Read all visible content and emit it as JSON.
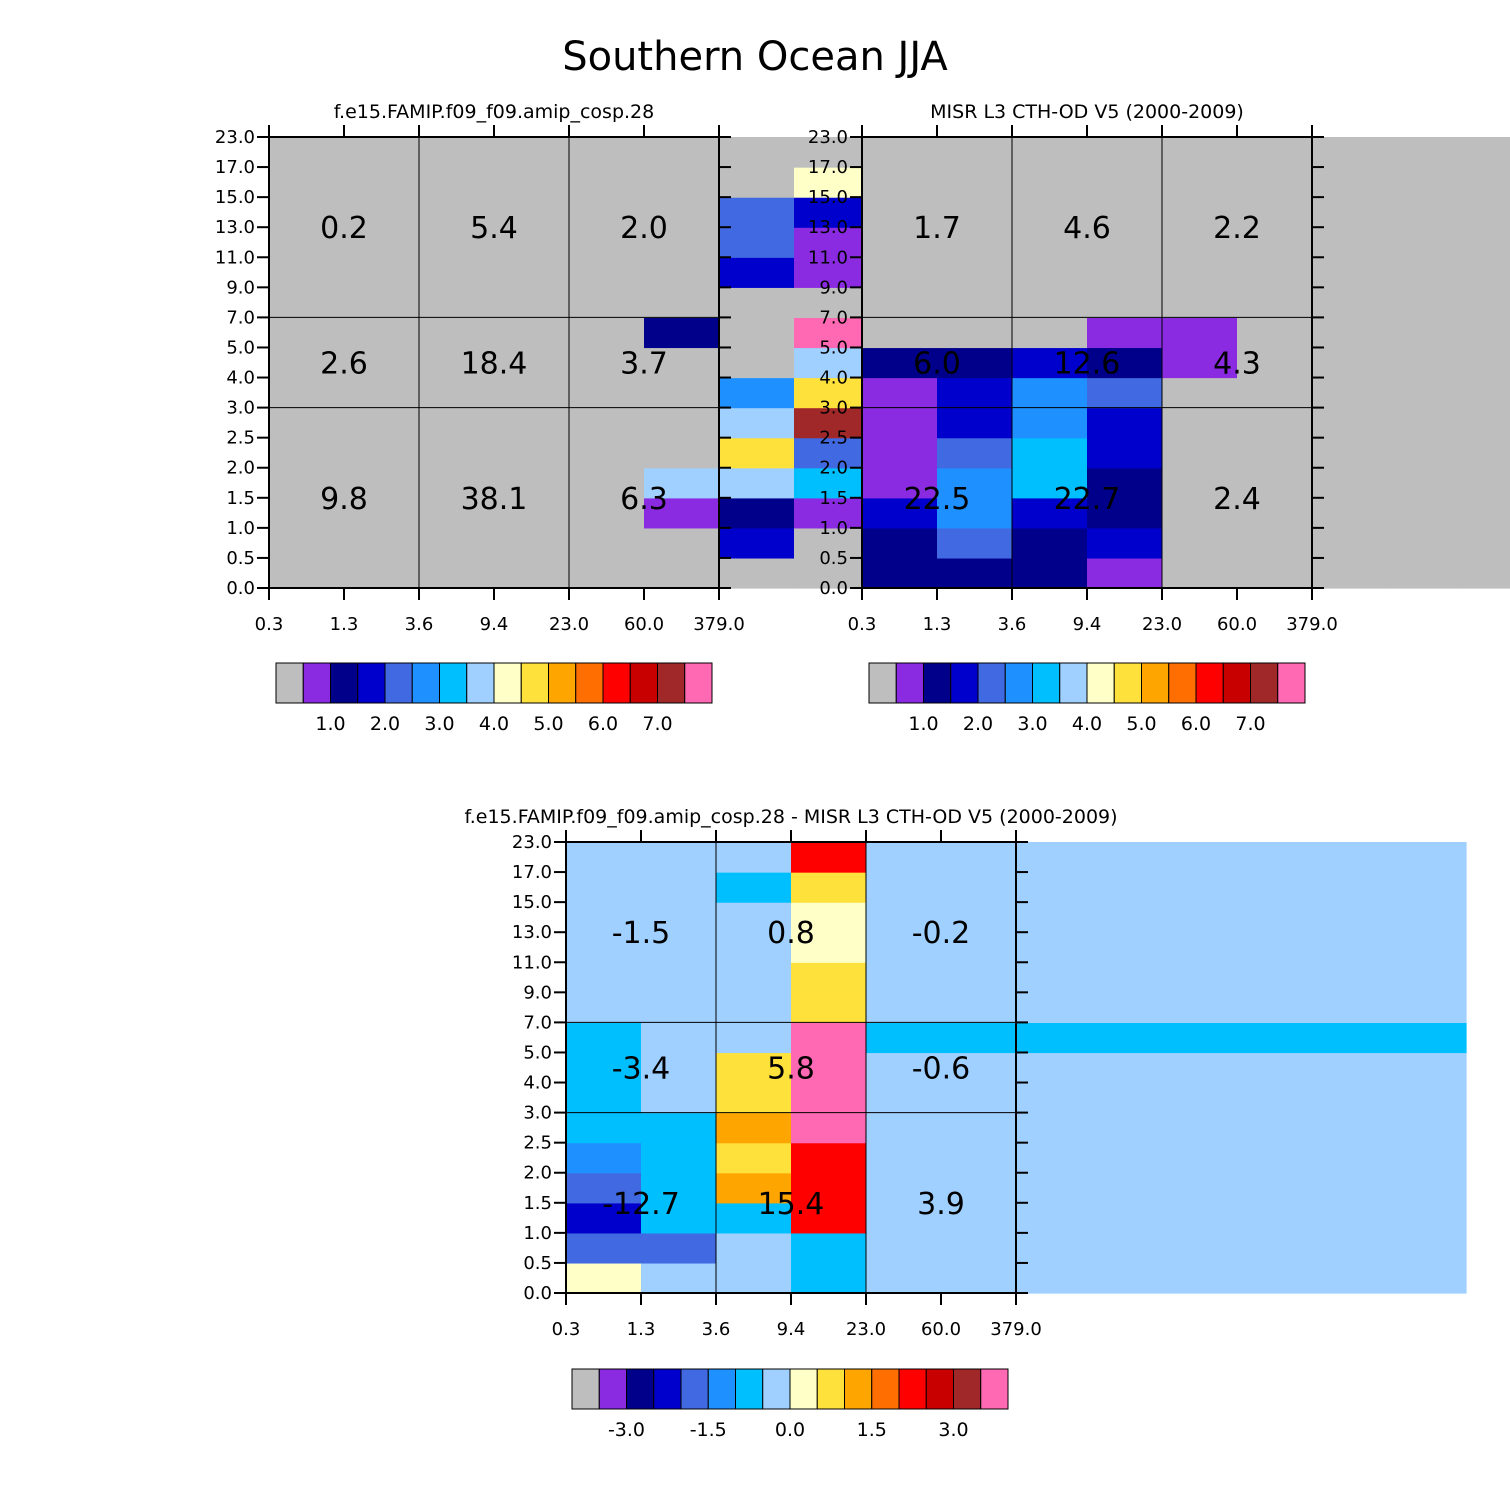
{
  "title": "Southern Ocean JJA",
  "palette": [
    "#bebebe",
    "#8a2be2",
    "#00008b",
    "#0000cd",
    "#4169e1",
    "#1e90ff",
    "#00bfff",
    "#a0d0ff",
    "#ffffc8",
    "#ffe13c",
    "#ffa500",
    "#ff6e00",
    "#ff0000",
    "#c80000",
    "#a02828",
    "#ff69b4"
  ],
  "chart_data": [
    {
      "type": "heatmap",
      "title": "f.e15.FAMIP.f09_f09.amip_cosp.28",
      "xticks": [
        "0.3",
        "1.3",
        "3.6",
        "9.4",
        "23.0",
        "60.0",
        "379.0"
      ],
      "yticks": [
        "0.0",
        "0.5",
        "1.0",
        "1.5",
        "2.0",
        "2.5",
        "3.0",
        "4.0",
        "5.0",
        "7.0",
        "9.0",
        "11.0",
        "13.0",
        "15.0",
        "17.0",
        "23.0"
      ],
      "colorbar_labels": [
        "1.0",
        "2.0",
        "3.0",
        "4.0",
        "5.0",
        "6.0",
        "7.0"
      ],
      "cells": [
        [
          0,
          0,
          0,
          0,
          0,
          0,
          0,
          0,
          0,
          0,
          0,
          0,
          0,
          0,
          0
        ],
        [
          0,
          0,
          0,
          0,
          0,
          0,
          0,
          0,
          0,
          0,
          0,
          0,
          0,
          0,
          0
        ],
        [
          0,
          0,
          0,
          0,
          0,
          0,
          0,
          0,
          0,
          0,
          0,
          0,
          0,
          0,
          0
        ],
        [
          0,
          0,
          0,
          0,
          0,
          0,
          0,
          0,
          0,
          0,
          0,
          0,
          0,
          0,
          0
        ],
        [
          0,
          0,
          0,
          0,
          0,
          0,
          0,
          0,
          0,
          0,
          0,
          0,
          0,
          0,
          0
        ],
        [
          0,
          0,
          1,
          7,
          0,
          0,
          0,
          0,
          2,
          0,
          0,
          0,
          0,
          0,
          0
        ],
        [
          0,
          3,
          2,
          7,
          9,
          7,
          5,
          0,
          0,
          0,
          3,
          4,
          4,
          0,
          0
        ],
        [
          0,
          0,
          1,
          6,
          4,
          14,
          9,
          7,
          15,
          0,
          1,
          1,
          3,
          8,
          0
        ],
        [
          0,
          0,
          4,
          3,
          1,
          4,
          4,
          1,
          4,
          0,
          0,
          0,
          0,
          0,
          0
        ],
        [
          0,
          0,
          0,
          0,
          0,
          0,
          0,
          0,
          0,
          0,
          0,
          0,
          0,
          0,
          0
        ],
        [
          0,
          0,
          0,
          0,
          0,
          0,
          0,
          0,
          0,
          0,
          0,
          0,
          0,
          0,
          0
        ],
        [
          0,
          0,
          0,
          0,
          0,
          0,
          0,
          0,
          0,
          0,
          0,
          0,
          0,
          0,
          0
        ]
      ],
      "region_labels": [
        [
          "0.2",
          "5.4",
          "2.0"
        ],
        [
          "2.6",
          "18.4",
          "3.7"
        ],
        [
          "9.8",
          "38.1",
          "6.3"
        ]
      ]
    },
    {
      "type": "heatmap",
      "title": "MISR L3 CTH-OD V5 (2000-2009)",
      "xticks": [
        "0.3",
        "1.3",
        "3.6",
        "9.4",
        "23.0",
        "60.0",
        "379.0"
      ],
      "yticks": [
        "0.0",
        "0.5",
        "1.0",
        "1.5",
        "2.0",
        "2.5",
        "3.0",
        "4.0",
        "5.0",
        "7.0",
        "9.0",
        "11.0",
        "13.0",
        "15.0",
        "17.0",
        "23.0"
      ],
      "colorbar_labels": [
        "1.0",
        "2.0",
        "3.0",
        "4.0",
        "5.0",
        "6.0",
        "7.0"
      ],
      "cells": [
        [
          2,
          2,
          3,
          1,
          1,
          1,
          1,
          2,
          0,
          0,
          0,
          0,
          0,
          0,
          0
        ],
        [
          2,
          4,
          5,
          5,
          4,
          3,
          3,
          2,
          0,
          0,
          0,
          0,
          0,
          0,
          0
        ],
        [
          2,
          2,
          3,
          6,
          6,
          5,
          5,
          3,
          0,
          0,
          0,
          0,
          0,
          0,
          0
        ],
        [
          1,
          3,
          2,
          2,
          3,
          3,
          4,
          2,
          1,
          0,
          0,
          0,
          0,
          0,
          0
        ],
        [
          0,
          0,
          0,
          0,
          0,
          0,
          0,
          1,
          1,
          0,
          0,
          0,
          0,
          0,
          0
        ],
        [
          0,
          0,
          0,
          0,
          0,
          0,
          0,
          0,
          0,
          0,
          0,
          0,
          0,
          0,
          0
        ],
        [
          0,
          0,
          0,
          0,
          0,
          0,
          0,
          0,
          0,
          0,
          0,
          0,
          0,
          0,
          0
        ],
        [
          0,
          0,
          0,
          0,
          0,
          0,
          0,
          0,
          0,
          0,
          0,
          0,
          0,
          0,
          0
        ],
        [
          0,
          0,
          0,
          0,
          0,
          0,
          0,
          0,
          0,
          0,
          0,
          0,
          0,
          0,
          0
        ],
        [
          0,
          0,
          0,
          0,
          0,
          0,
          0,
          0,
          0,
          0,
          0,
          0,
          0,
          0,
          0
        ],
        [
          0,
          0,
          0,
          0,
          0,
          0,
          0,
          0,
          0,
          0,
          0,
          0,
          0,
          0,
          0
        ],
        [
          0,
          0,
          0,
          0,
          0,
          0,
          0,
          0,
          0,
          0,
          0,
          0,
          0,
          0,
          0
        ]
      ],
      "region_labels": [
        [
          "1.7",
          "4.6",
          "2.2"
        ],
        [
          "6.0",
          "12.6",
          "4.3"
        ],
        [
          "22.5",
          "22.7",
          "2.4"
        ]
      ]
    },
    {
      "type": "heatmap",
      "title": "f.e15.FAMIP.f09_f09.amip_cosp.28 - MISR L3 CTH-OD V5 (2000-2009)",
      "xticks": [
        "0.3",
        "1.3",
        "3.6",
        "9.4",
        "23.0",
        "60.0",
        "379.0"
      ],
      "yticks": [
        "0.0",
        "0.5",
        "1.0",
        "1.5",
        "2.0",
        "2.5",
        "3.0",
        "4.0",
        "5.0",
        "7.0",
        "9.0",
        "11.0",
        "13.0",
        "15.0",
        "17.0",
        "23.0"
      ],
      "colorbar_labels": [
        "-3.0",
        "-1.5",
        "0.0",
        "1.5",
        "3.0"
      ],
      "cells": [
        [
          8,
          4,
          3,
          4,
          5,
          6,
          6,
          6,
          6,
          7,
          7,
          7,
          7,
          7,
          7
        ],
        [
          7,
          4,
          6,
          6,
          6,
          6,
          7,
          7,
          7,
          7,
          7,
          7,
          7,
          7,
          7
        ],
        [
          7,
          7,
          6,
          10,
          9,
          10,
          9,
          9,
          7,
          7,
          7,
          7,
          7,
          6,
          7
        ],
        [
          6,
          6,
          12,
          12,
          12,
          15,
          15,
          15,
          15,
          9,
          9,
          8,
          8,
          9,
          12
        ],
        [
          7,
          7,
          7,
          7,
          7,
          7,
          7,
          7,
          6,
          7,
          7,
          7,
          7,
          7,
          7
        ],
        [
          7,
          7,
          7,
          7,
          7,
          7,
          7,
          7,
          6,
          7,
          7,
          7,
          7,
          7,
          7
        ],
        [
          7,
          7,
          7,
          7,
          7,
          7,
          7,
          7,
          6,
          7,
          7,
          7,
          7,
          7,
          7
        ],
        [
          7,
          7,
          7,
          7,
          7,
          7,
          7,
          7,
          6,
          7,
          7,
          7,
          7,
          7,
          7
        ],
        [
          7,
          7,
          7,
          7,
          7,
          7,
          7,
          7,
          6,
          7,
          7,
          7,
          7,
          7,
          7
        ],
        [
          7,
          7,
          7,
          7,
          7,
          7,
          7,
          7,
          6,
          7,
          7,
          7,
          7,
          7,
          7
        ],
        [
          7,
          7,
          7,
          7,
          7,
          7,
          7,
          7,
          6,
          7,
          7,
          7,
          7,
          7,
          7
        ],
        [
          7,
          7,
          7,
          7,
          7,
          7,
          7,
          7,
          6,
          7,
          7,
          7,
          7,
          7,
          7
        ]
      ],
      "region_labels": [
        [
          "-1.5",
          "0.8",
          "-0.2"
        ],
        [
          "-3.4",
          "5.8",
          "-0.6"
        ],
        [
          "-12.7",
          "15.4",
          "3.9"
        ]
      ]
    }
  ]
}
